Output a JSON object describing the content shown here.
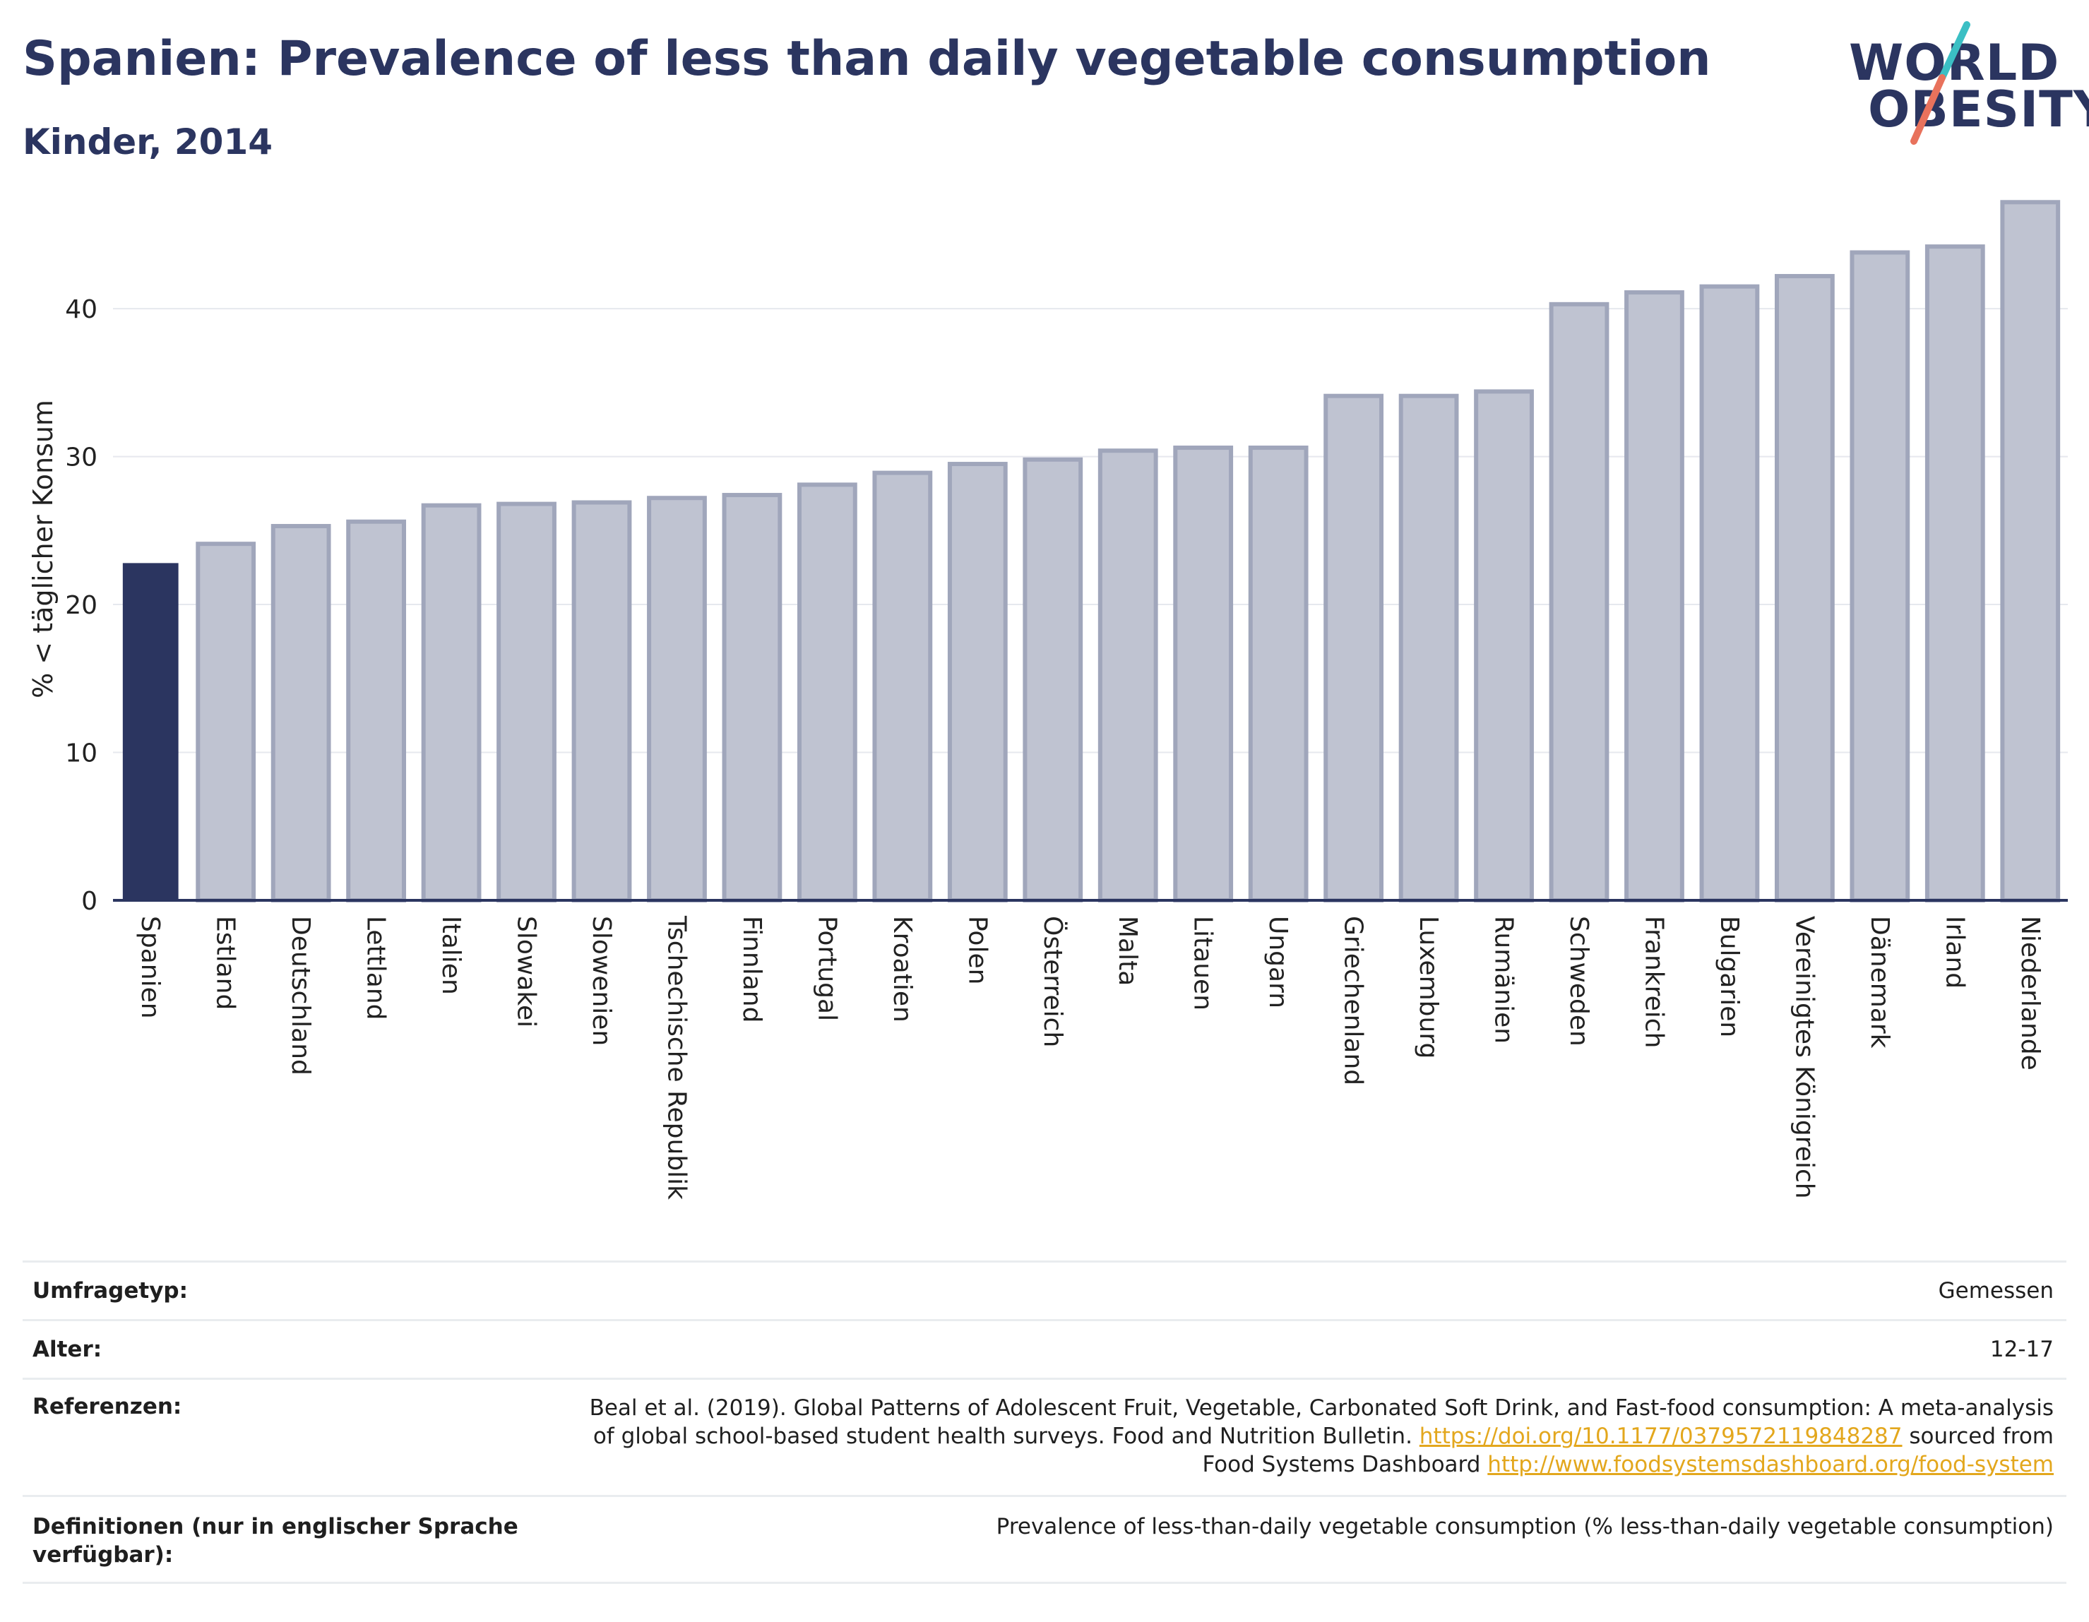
{
  "header": {
    "title": "Spanien: Prevalence of less than daily vegetable consumption",
    "subtitle": "Kinder, 2014"
  },
  "logo": {
    "line1": "WORLD",
    "line2": "OBESITY",
    "slash_color_top": "#3bbfc4",
    "slash_color_bottom": "#e8725c"
  },
  "colors": {
    "highlight_bar": "#2b3560",
    "other_bar_fill": "#bfc3d1",
    "other_bar_stroke": "#a0a6bb",
    "grid": "#e6e8ee",
    "link": "#e3a71d"
  },
  "chart_data": {
    "type": "bar",
    "title": "Spanien: Prevalence of less than daily vegetable consumption",
    "subtitle": "Kinder, 2014",
    "xlabel": "",
    "ylabel": "% < täglicher Konsum",
    "ylim": [
      0,
      47.5
    ],
    "yticks": [
      0,
      10,
      20,
      30,
      40
    ],
    "grid": true,
    "highlight": "Spanien",
    "categories": [
      "Spanien",
      "Estland",
      "Deutschland",
      "Lettland",
      "Italien",
      "Slowakei",
      "Slowenien",
      "Tschechische Republik",
      "Finnland",
      "Portugal",
      "Kroatien",
      "Polen",
      "Österreich",
      "Malta",
      "Litauen",
      "Ungarn",
      "Griechenland",
      "Luxemburg",
      "Rumänien",
      "Schweden",
      "Frankreich",
      "Bulgarien",
      "Vereinigtes Königreich",
      "Dänemark",
      "Irland",
      "Niederlande"
    ],
    "values": [
      22.8,
      24.1,
      25.3,
      25.6,
      26.7,
      26.8,
      26.9,
      27.2,
      27.4,
      28.1,
      28.9,
      29.5,
      29.8,
      30.4,
      30.6,
      30.6,
      34.1,
      34.1,
      34.4,
      40.3,
      41.1,
      41.5,
      42.2,
      43.8,
      44.2,
      47.2
    ]
  },
  "meta": {
    "survey_label": "Umfragetyp:",
    "survey_value": "Gemessen",
    "age_label": "Alter:",
    "age_value": "12-17",
    "refs_label": "Referenzen:",
    "refs_line1": "Beal et al. (2019). Global Patterns of Adolescent Fruit, Vegetable, Carbonated Soft Drink, and Fast-food consumption: A meta-analysis",
    "refs_line2_text": "of global school-based student health surveys. Food and Nutrition Bulletin. ",
    "refs_link1": "https://doi.org/10.1177/0379572119848287",
    "refs_line2_after": " sourced from",
    "refs_line3_text": "Food Systems Dashboard ",
    "refs_link2": "http://www.foodsystemsdashboard.org/food-system",
    "defs_label": "Definitionen (nur in englischer Sprache verfügbar):",
    "defs_value": "Prevalence of less-than-daily vegetable consumption (% less-than-daily vegetable consumption)"
  }
}
